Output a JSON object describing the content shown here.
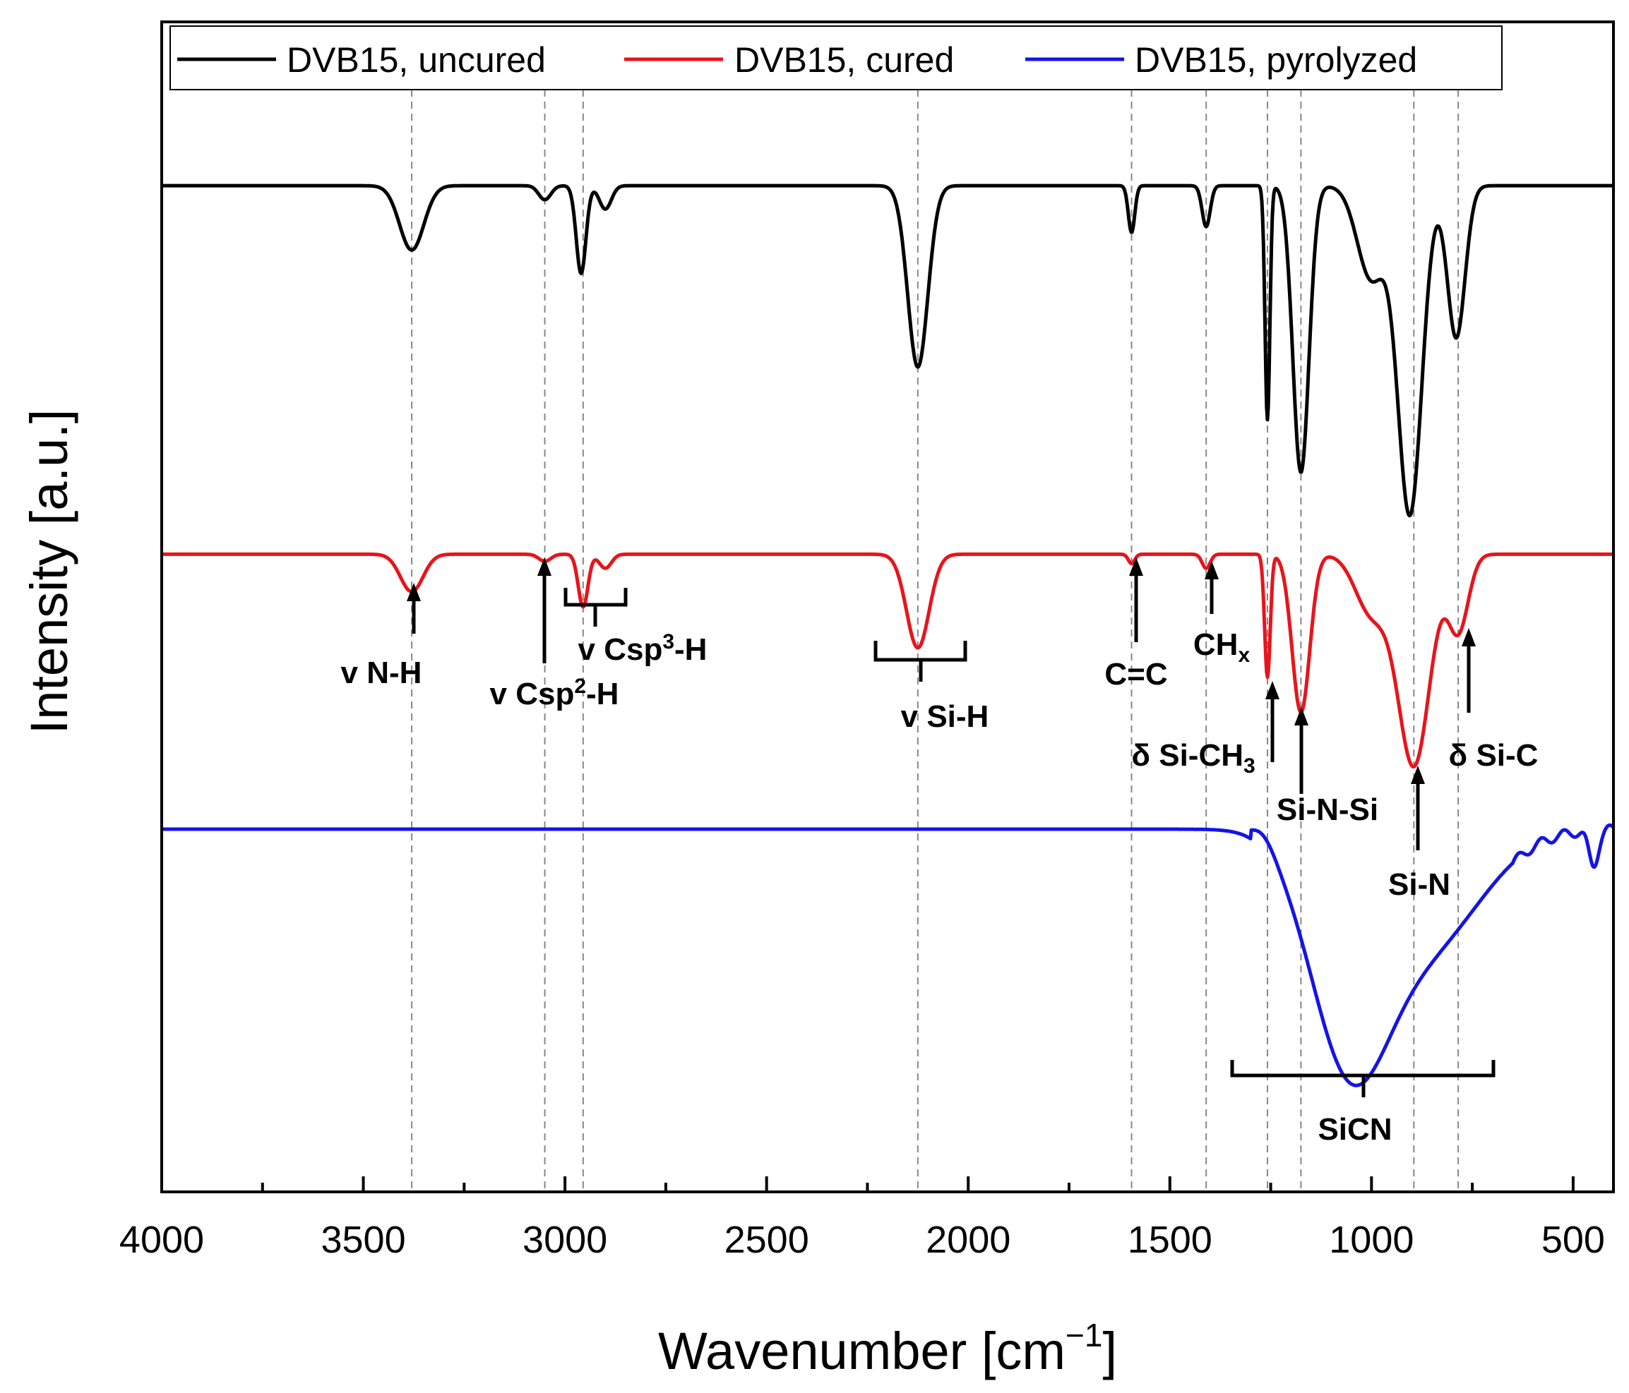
{
  "chart_data": {
    "type": "line",
    "title": "",
    "xlabel_main": "Wavenumber [cm",
    "xlabel_sup": "−1",
    "xlabel_close": "]",
    "ylabel": "Intensity [a.u.]",
    "xlim": [
      4000,
      400
    ],
    "xticks": [
      "4000",
      "3500",
      "3000",
      "2500",
      "2000",
      "1500",
      "1000",
      "500"
    ],
    "xtick_values": [
      4000,
      3500,
      3000,
      2500,
      2000,
      1500,
      1000,
      500
    ],
    "y_tick_labels_shown": false,
    "legend_position": "top",
    "series": [
      {
        "name": "DVB15, uncured",
        "color": "#000000",
        "baseline": 0.86,
        "peaks": [
          {
            "x": 3380,
            "depth": 0.055,
            "w": 30
          },
          {
            "x": 3050,
            "depth": 0.012,
            "w": 15
          },
          {
            "x": 2960,
            "depth": 0.075,
            "w": 12
          },
          {
            "x": 2900,
            "depth": 0.02,
            "w": 15
          },
          {
            "x": 2125,
            "depth": 0.155,
            "w": 25
          },
          {
            "x": 1595,
            "depth": 0.04,
            "w": 8
          },
          {
            "x": 1410,
            "depth": 0.035,
            "w": 10
          },
          {
            "x": 1258,
            "depth": 0.2,
            "w": 6
          },
          {
            "x": 1175,
            "depth": 0.245,
            "w": 20
          },
          {
            "x": 1000,
            "depth": 0.08,
            "w": 35
          },
          {
            "x": 905,
            "depth": 0.28,
            "w": 30
          },
          {
            "x": 790,
            "depth": 0.13,
            "w": 22
          }
        ]
      },
      {
        "name": "DVB15, cured",
        "color": "#e8141b",
        "baseline": 0.545,
        "peaks": [
          {
            "x": 3380,
            "depth": 0.032,
            "w": 28
          },
          {
            "x": 3050,
            "depth": 0.006,
            "w": 15
          },
          {
            "x": 2955,
            "depth": 0.045,
            "w": 12
          },
          {
            "x": 2900,
            "depth": 0.012,
            "w": 15
          },
          {
            "x": 2125,
            "depth": 0.08,
            "w": 28
          },
          {
            "x": 1595,
            "depth": 0.008,
            "w": 8
          },
          {
            "x": 1410,
            "depth": 0.012,
            "w": 10
          },
          {
            "x": 1258,
            "depth": 0.105,
            "w": 7
          },
          {
            "x": 1175,
            "depth": 0.135,
            "w": 22
          },
          {
            "x": 1000,
            "depth": 0.05,
            "w": 40
          },
          {
            "x": 895,
            "depth": 0.18,
            "w": 40
          },
          {
            "x": 785,
            "depth": 0.065,
            "w": 25
          }
        ]
      },
      {
        "name": "DVB15, pyrolyzed",
        "color": "#1414e6",
        "baseline": 0.31,
        "peaks": [
          {
            "x": 1060,
            "depth": 0.175,
            "w": 95
          },
          {
            "x": 870,
            "depth": 0.1,
            "w": 140
          },
          {
            "x": 450,
            "depth": 0.03,
            "w": 12
          }
        ]
      }
    ],
    "reference_lines": [
      3380,
      3050,
      2955,
      2125,
      1595,
      1410,
      1258,
      1175,
      895,
      785
    ],
    "annotations": [
      {
        "label": "v N-H"
      },
      {
        "label_pre": "v Csp",
        "sup": "2",
        "label_post": "-H"
      },
      {
        "label_pre": "v Csp",
        "sup": "3",
        "label_post": "-H"
      },
      {
        "label": "v Si-H"
      },
      {
        "label": "C=C"
      },
      {
        "label_pre": "CH",
        "sub": "x"
      },
      {
        "label_pre": "δ Si-CH",
        "sub": "3"
      },
      {
        "label": "Si-N-Si"
      },
      {
        "label": "δ Si-C"
      },
      {
        "label": "Si-N"
      },
      {
        "label": "SiCN"
      }
    ]
  }
}
